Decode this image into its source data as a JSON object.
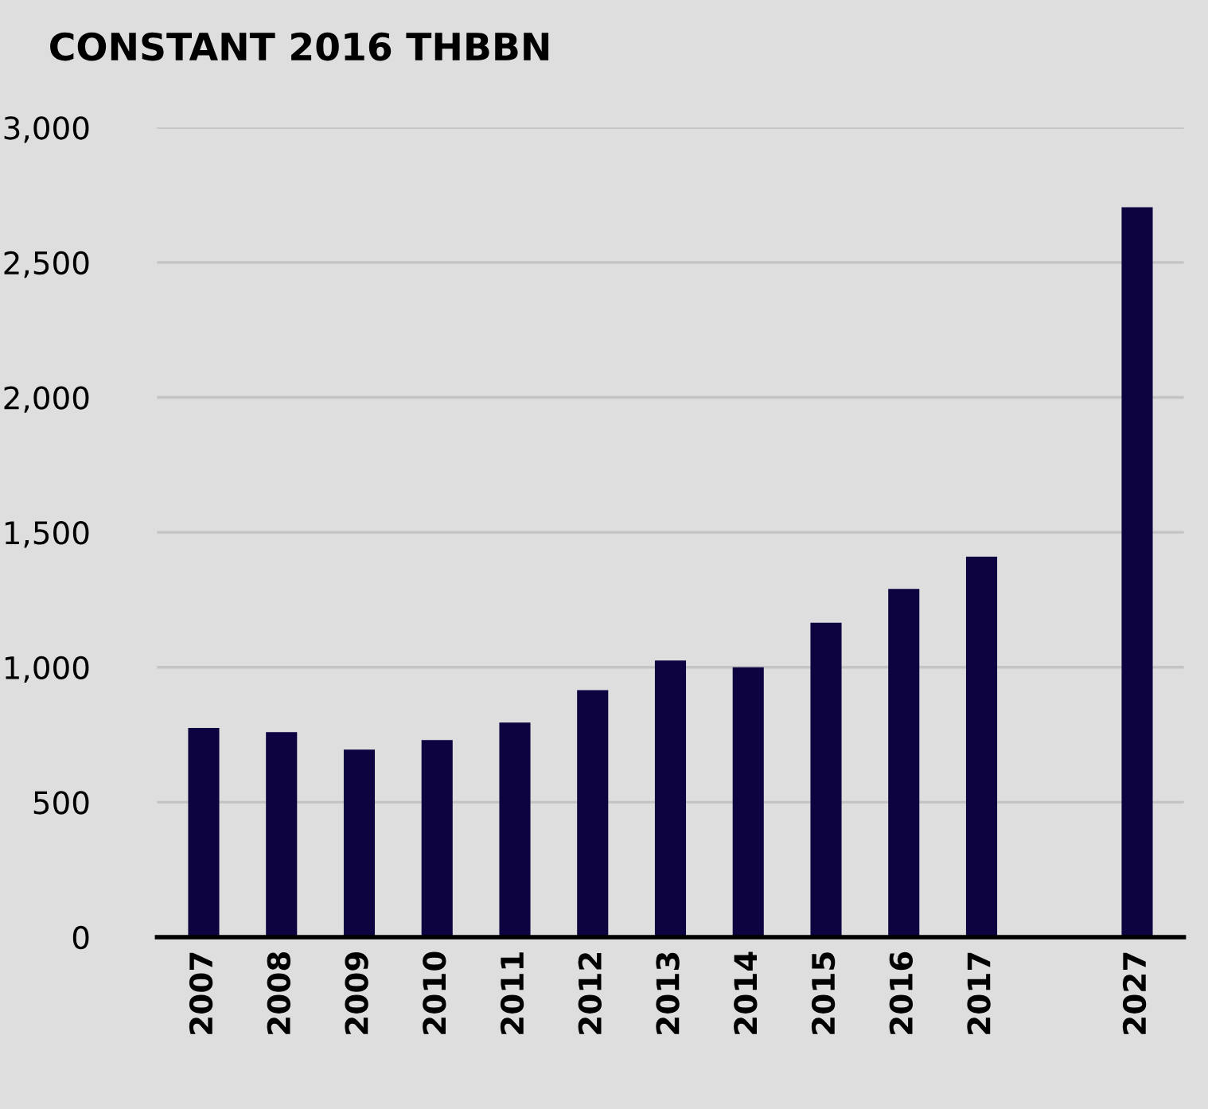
{
  "chart_data": {
    "type": "bar",
    "title": "CONSTANT 2016 THBBN",
    "categories": [
      "2007",
      "2008",
      "2009",
      "2010",
      "2011",
      "2012",
      "2013",
      "2014",
      "2015",
      "2016",
      "2017",
      null,
      "2027"
    ],
    "values": [
      775,
      760,
      695,
      730,
      795,
      915,
      1025,
      1000,
      1165,
      1290,
      1410,
      null,
      2705
    ],
    "color": "#0d0340",
    "ylim": [
      0,
      3000
    ],
    "yticks": [
      {
        "value": 0,
        "label": "0"
      },
      {
        "value": 500,
        "label": "500"
      },
      {
        "value": 1000,
        "label": "1,000"
      },
      {
        "value": 1500,
        "label": "1,500"
      },
      {
        "value": 2000,
        "label": "2,000"
      },
      {
        "value": 2500,
        "label": "2,500"
      },
      {
        "value": 3000,
        "label": "3,000"
      }
    ],
    "grid": "y"
  }
}
